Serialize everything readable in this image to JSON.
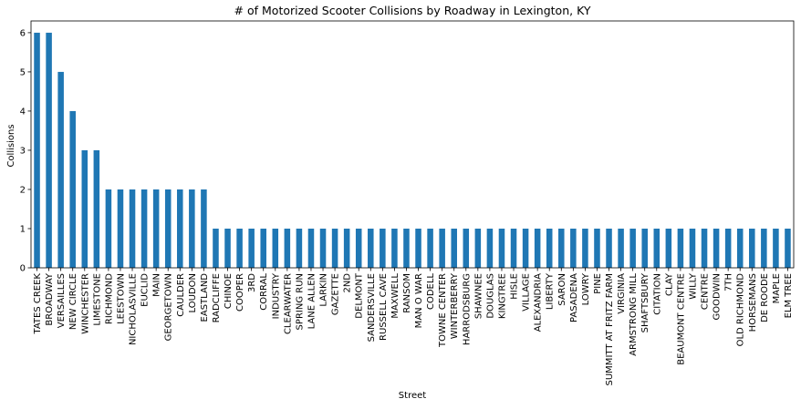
{
  "chart_data": {
    "type": "bar",
    "title": "# of Motorized Scooter Collisions by Roadway in Lexington, KY",
    "xlabel": "Street",
    "ylabel": "Collisions",
    "ylim": [
      0,
      6.3
    ],
    "yticks": [
      0,
      1,
      2,
      3,
      4,
      5,
      6
    ],
    "grid": false,
    "bar_color": "#1f77b4",
    "categories": [
      "TATES CREEK",
      "BROADWAY",
      "VERSAILLES",
      "NEW CIRCLE",
      "WINCHESTER",
      "LIMESTONE",
      "RICHMOND",
      "LEESTOWN",
      "NICHOLASVILLE",
      "EUCLID",
      "MAIN",
      "GEORGETOWN",
      "CAULDER",
      "LOUDON",
      "EASTLAND",
      "RADCLIFFE",
      "CHINOE",
      "COOPER",
      "3RD",
      "CORRAL",
      "INDUSTRY",
      "CLEARWATER",
      "SPRING RUN",
      "LANE ALLEN",
      "LARKIN",
      "GAZETTE",
      "2ND",
      "DELMONT",
      "SANDERSVILLE",
      "RUSSELL CAVE",
      "MAXWELL",
      "RANSOM",
      "MAN O WAR",
      "CODELL",
      "TOWNE CENTER",
      "WINTERBERRY",
      "HARRODSBURG",
      "SHAWNEE",
      "DOUGLAS",
      "KINGTREE",
      "HISLE",
      "VILLAGE",
      "ALEXANDRIA",
      "LIBERTY",
      "SARON",
      "PASADENA",
      "LOWRY",
      "PINE",
      "SUMMITT AT FRITZ FARM",
      "VIRGINIA",
      "ARMSTRONG MILL",
      "SHAFTSBURY",
      "CITATION",
      "CLAY",
      "BEAUMONT CENTRE",
      "WILLY",
      "CENTRE",
      "GOODWIN",
      "7TH",
      "OLD RICHMOND",
      "HORSEMANS",
      "DE ROODE",
      "MAPLE",
      "ELM TREE"
    ],
    "values": [
      6,
      6,
      5,
      4,
      3,
      3,
      2,
      2,
      2,
      2,
      2,
      2,
      2,
      2,
      2,
      1,
      1,
      1,
      1,
      1,
      1,
      1,
      1,
      1,
      1,
      1,
      1,
      1,
      1,
      1,
      1,
      1,
      1,
      1,
      1,
      1,
      1,
      1,
      1,
      1,
      1,
      1,
      1,
      1,
      1,
      1,
      1,
      1,
      1,
      1,
      1,
      1,
      1,
      1,
      1,
      1,
      1,
      1,
      1,
      1,
      1,
      1,
      1,
      1
    ]
  }
}
